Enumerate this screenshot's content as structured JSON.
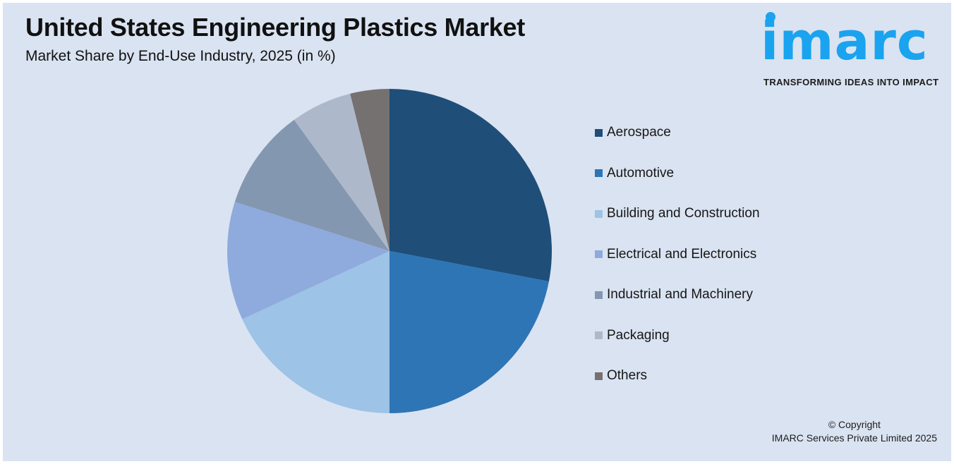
{
  "header": {
    "title": "United States Engineering Plastics Market",
    "subtitle": "Market Share by End-Use Industry, 2025 (in %)"
  },
  "logo": {
    "wordmark": "imarc",
    "tagline": "TRANSFORMING IDEAS INTO IMPACT",
    "color": "#1aa3ef"
  },
  "footer": {
    "line1": "© Copyright",
    "line2": "IMARC Services Private Limited 2025"
  },
  "legend": {
    "items": [
      {
        "label": "Aerospace",
        "color": "#1f4e79"
      },
      {
        "label": "Automotive",
        "color": "#2e75b6"
      },
      {
        "label": "Building and Construction",
        "color": "#9dc3e6"
      },
      {
        "label": "Electrical and Electronics",
        "color": "#8faadc"
      },
      {
        "label": "Industrial and Machinery",
        "color": "#8497b0"
      },
      {
        "label": "Packaging",
        "color": "#adb9ca"
      },
      {
        "label": "Others",
        "color": "#767171"
      }
    ]
  },
  "chart_data": {
    "type": "pie",
    "title": "United States Engineering Plastics Market",
    "subtitle": "Market Share by End-Use Industry, 2025 (in %)",
    "categories": [
      "Aerospace",
      "Automotive",
      "Building and Construction",
      "Electrical and Electronics",
      "Industrial and Machinery",
      "Packaging",
      "Others"
    ],
    "values": [
      28.0,
      22.0,
      18.1,
      11.8,
      10.1,
      6.1,
      3.9
    ],
    "colors": [
      "#1f4e79",
      "#2e75b6",
      "#9dc3e6",
      "#8faadc",
      "#8497b0",
      "#adb9ca",
      "#767171"
    ],
    "start_angle": "12 o'clock, clockwise",
    "legend_position": "right",
    "data_labels": false
  }
}
